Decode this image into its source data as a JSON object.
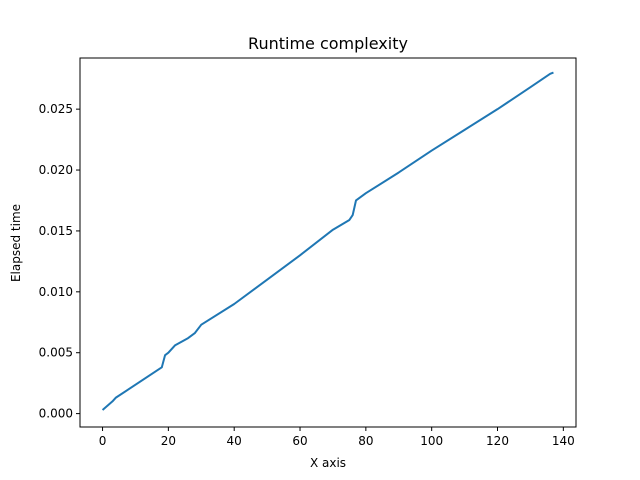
{
  "chart_data": {
    "type": "line",
    "title": "Runtime complexity",
    "xlabel": "X axis",
    "ylabel": "Elapsed time",
    "xlim": [
      -6.85,
      143.85
    ],
    "ylim": [
      -0.0011,
      0.0292
    ],
    "xticks": [
      0,
      20,
      40,
      60,
      80,
      100,
      120,
      140
    ],
    "xtick_labels": [
      "0",
      "20",
      "40",
      "60",
      "80",
      "100",
      "120",
      "140"
    ],
    "yticks": [
      0.0,
      0.005,
      0.01,
      0.015,
      0.02,
      0.025
    ],
    "ytick_labels": [
      "0.000",
      "0.005",
      "0.010",
      "0.015",
      "0.020",
      "0.025"
    ],
    "grid": false,
    "legend": "none",
    "color": "#1f77b4",
    "series": [
      {
        "x": [
          0,
          3,
          4,
          18,
          19,
          20,
          22,
          24,
          26,
          28,
          30,
          40,
          50,
          60,
          70,
          75,
          76,
          77,
          80,
          90,
          100,
          110,
          120,
          130,
          136,
          137
        ],
        "values": [
          0.0003,
          0.001,
          0.0013,
          0.0038,
          0.0048,
          0.005,
          0.0056,
          0.0059,
          0.0062,
          0.0066,
          0.0073,
          0.009,
          0.011,
          0.013,
          0.0151,
          0.0159,
          0.0163,
          0.0175,
          0.0181,
          0.0198,
          0.0216,
          0.0233,
          0.025,
          0.0268,
          0.0279,
          0.028
        ]
      }
    ]
  }
}
